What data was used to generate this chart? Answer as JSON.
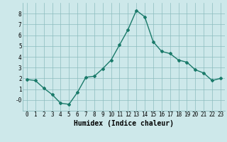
{
  "x": [
    0,
    1,
    2,
    3,
    4,
    5,
    6,
    7,
    8,
    9,
    10,
    11,
    12,
    13,
    14,
    15,
    16,
    17,
    18,
    19,
    20,
    21,
    22,
    23
  ],
  "y": [
    1.9,
    1.8,
    1.1,
    0.5,
    -0.3,
    -0.4,
    0.7,
    2.1,
    2.2,
    2.9,
    3.7,
    5.1,
    6.5,
    8.3,
    7.7,
    5.4,
    4.5,
    4.3,
    3.7,
    3.5,
    2.8,
    2.5,
    1.8,
    2.0
  ],
  "line_color": "#1a7a6a",
  "marker": "D",
  "marker_size": 2.0,
  "linewidth": 1.0,
  "xlabel": "Humidex (Indice chaleur)",
  "xlim": [
    -0.5,
    23.5
  ],
  "ylim": [
    -1.0,
    9.0
  ],
  "yticks": [
    0,
    1,
    2,
    3,
    4,
    5,
    6,
    7,
    8
  ],
  "ytick_labels": [
    "-0",
    "1",
    "2",
    "3",
    "4",
    "5",
    "6",
    "7",
    "8"
  ],
  "xticks": [
    0,
    1,
    2,
    3,
    4,
    5,
    6,
    7,
    8,
    9,
    10,
    11,
    12,
    13,
    14,
    15,
    16,
    17,
    18,
    19,
    20,
    21,
    22,
    23
  ],
  "bg_color": "#cde8ea",
  "grid_color": "#8bbcbe",
  "xlabel_fontsize": 7.0,
  "tick_fontsize": 5.5
}
